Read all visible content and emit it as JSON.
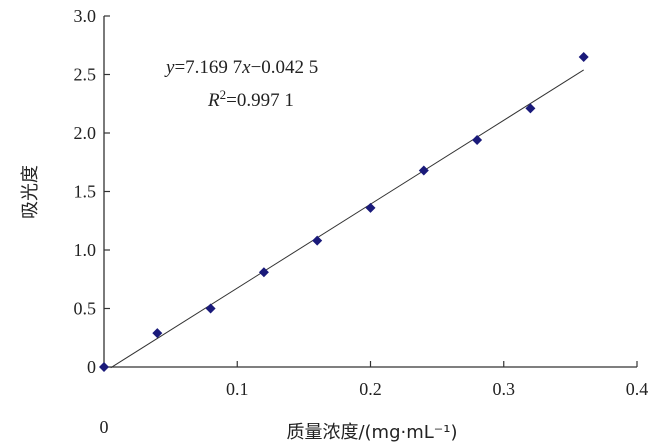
{
  "chart_data": {
    "type": "scatter",
    "title": "",
    "xlabel": "质量浓度/(mg·mL⁻¹)",
    "ylabel": "吸光度",
    "xlim": [
      0,
      0.4
    ],
    "ylim": [
      0,
      3.0
    ],
    "x_ticks": [
      "0.1",
      "0.2",
      "0.3",
      "0.4"
    ],
    "x_tick_values": [
      0.1,
      0.2,
      0.3,
      0.4
    ],
    "y_ticks": [
      "0",
      "0.5",
      "1.0",
      "1.5",
      "2.0",
      "2.5",
      "3.0"
    ],
    "y_tick_values": [
      0,
      0.5,
      1.0,
      1.5,
      2.0,
      2.5,
      3.0
    ],
    "origin_label": "0",
    "grid": false,
    "points": [
      {
        "x": 0.0,
        "y": 0.0
      },
      {
        "x": 0.04,
        "y": 0.29
      },
      {
        "x": 0.08,
        "y": 0.5
      },
      {
        "x": 0.12,
        "y": 0.81
      },
      {
        "x": 0.16,
        "y": 1.08
      },
      {
        "x": 0.2,
        "y": 1.36
      },
      {
        "x": 0.24,
        "y": 1.68
      },
      {
        "x": 0.28,
        "y": 1.94
      },
      {
        "x": 0.32,
        "y": 2.21
      },
      {
        "x": 0.36,
        "y": 2.65
      }
    ],
    "trendline": {
      "slope": 7.1697,
      "intercept": -0.0425,
      "x_range": [
        0.005,
        0.36
      ]
    },
    "annotations": {
      "equation_y": "y",
      "equation_rest": "=7.169 7",
      "equation_x": "x",
      "equation_tail": "−0.042 5",
      "r2_r": "R",
      "r2_sup": "2",
      "r2_value": "=0.997 1"
    },
    "colors": {
      "marker": "#1a1a7a",
      "line": "#333333",
      "axis": "#333333"
    }
  }
}
